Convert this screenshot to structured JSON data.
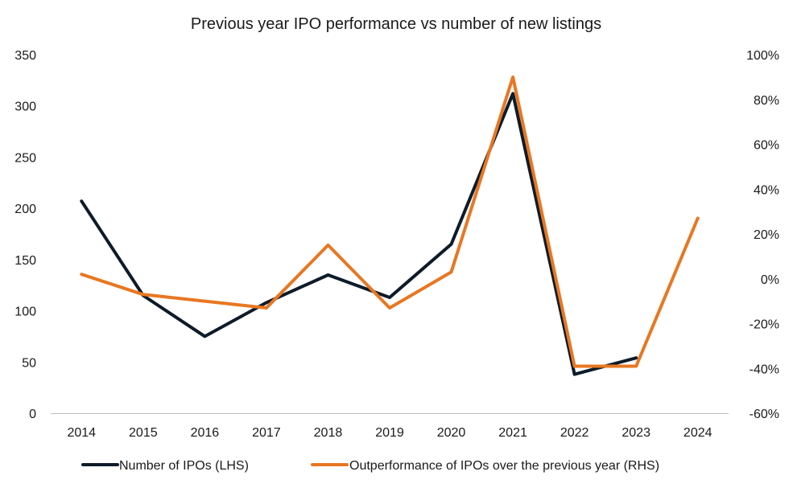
{
  "chart_data": {
    "type": "line",
    "title": "Previous year IPO performance  vs number  of new listings",
    "categories": [
      "2014",
      "2015",
      "2016",
      "2017",
      "2018",
      "2019",
      "2020",
      "2021",
      "2022",
      "2023",
      "2024"
    ],
    "series": [
      {
        "name": "Number of IPOs (LHS)",
        "axis": "left",
        "color": "#0d1b2a",
        "values": [
          207,
          115,
          75,
          108,
          135,
          113,
          165,
          312,
          38,
          54,
          null
        ]
      },
      {
        "name": "Outperformance of IPOs over the previous year (RHS)",
        "axis": "right",
        "color": "#e87722",
        "values": [
          2,
          -7,
          -10,
          -13,
          15,
          -13,
          3,
          90,
          -39,
          -39,
          27
        ]
      }
    ],
    "y_left": {
      "ylim": [
        0,
        350
      ],
      "ticks": [
        "0",
        "50",
        "100",
        "150",
        "200",
        "250",
        "300",
        "350"
      ]
    },
    "y_right": {
      "ylim": [
        -60,
        100
      ],
      "ticks": [
        "-60%",
        "-40%",
        "-20%",
        "0%",
        "20%",
        "40%",
        "60%",
        "80%",
        "100%"
      ]
    },
    "grid": false,
    "legend": "bottom"
  }
}
